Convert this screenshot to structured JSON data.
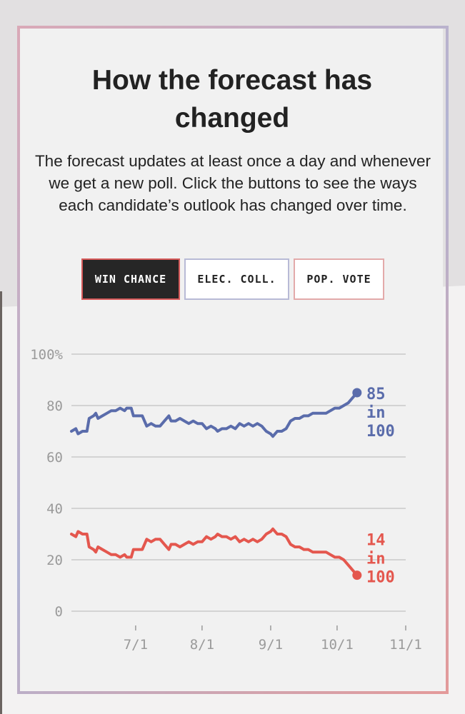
{
  "header": {
    "title": "How the forecast has changed",
    "description": "The forecast updates at least once a day and whenever we get a new poll. Click the buttons to see the ways each candidate’s outlook has changed over time."
  },
  "tabs": [
    {
      "label": "WIN CHANCE",
      "active": true
    },
    {
      "label": "ELEC. COLL.",
      "active": false
    },
    {
      "label": "POP. VOTE",
      "active": false
    }
  ],
  "chart_data": {
    "type": "line",
    "title": "",
    "xlabel": "",
    "ylabel": "",
    "ylim": [
      0,
      100
    ],
    "yticks": [
      "100%",
      "80",
      "60",
      "40",
      "20",
      "0"
    ],
    "ytick_values": [
      100,
      80,
      60,
      40,
      20,
      0
    ],
    "xticks": [
      "7/1",
      "8/1",
      "9/1",
      "10/1",
      "11/1"
    ],
    "xtick_days": [
      29,
      59,
      90,
      120,
      151
    ],
    "xlim_days": [
      0,
      151
    ],
    "x_unit_note": "days after June 2",
    "grid": true,
    "series": [
      {
        "color": "#5a6cab",
        "end_label": [
          "85",
          "in",
          "100"
        ],
        "points": [
          [
            0,
            70
          ],
          [
            2,
            71
          ],
          [
            3,
            69
          ],
          [
            5,
            70
          ],
          [
            7,
            70
          ],
          [
            8,
            75
          ],
          [
            10,
            76
          ],
          [
            11,
            77
          ],
          [
            12,
            75
          ],
          [
            14,
            76
          ],
          [
            16,
            77
          ],
          [
            18,
            78
          ],
          [
            20,
            78
          ],
          [
            22,
            79
          ],
          [
            24,
            78
          ],
          [
            25,
            79
          ],
          [
            27,
            79
          ],
          [
            28,
            76
          ],
          [
            30,
            76
          ],
          [
            32,
            76
          ],
          [
            34,
            72
          ],
          [
            36,
            73
          ],
          [
            38,
            72
          ],
          [
            40,
            72
          ],
          [
            42,
            74
          ],
          [
            44,
            76
          ],
          [
            45,
            74
          ],
          [
            47,
            74
          ],
          [
            49,
            75
          ],
          [
            51,
            74
          ],
          [
            53,
            73
          ],
          [
            55,
            74
          ],
          [
            57,
            73
          ],
          [
            59,
            73
          ],
          [
            61,
            71
          ],
          [
            63,
            72
          ],
          [
            65,
            71
          ],
          [
            66,
            70
          ],
          [
            68,
            71
          ],
          [
            70,
            71
          ],
          [
            72,
            72
          ],
          [
            74,
            71
          ],
          [
            76,
            73
          ],
          [
            78,
            72
          ],
          [
            80,
            73
          ],
          [
            82,
            72
          ],
          [
            84,
            73
          ],
          [
            86,
            72
          ],
          [
            88,
            70
          ],
          [
            90,
            69
          ],
          [
            91,
            68
          ],
          [
            93,
            70
          ],
          [
            95,
            70
          ],
          [
            97,
            71
          ],
          [
            99,
            74
          ],
          [
            101,
            75
          ],
          [
            103,
            75
          ],
          [
            105,
            76
          ],
          [
            107,
            76
          ],
          [
            109,
            77
          ],
          [
            111,
            77
          ],
          [
            113,
            77
          ],
          [
            115,
            77
          ],
          [
            117,
            78
          ],
          [
            119,
            79
          ],
          [
            121,
            79
          ],
          [
            123,
            80
          ],
          [
            125,
            81
          ],
          [
            127,
            83
          ],
          [
            129,
            85
          ]
        ]
      },
      {
        "color": "#e4574e",
        "end_label": [
          "14",
          "in",
          "100"
        ],
        "points": [
          [
            0,
            30
          ],
          [
            2,
            29
          ],
          [
            3,
            31
          ],
          [
            5,
            30
          ],
          [
            7,
            30
          ],
          [
            8,
            25
          ],
          [
            10,
            24
          ],
          [
            11,
            23
          ],
          [
            12,
            25
          ],
          [
            14,
            24
          ],
          [
            16,
            23
          ],
          [
            18,
            22
          ],
          [
            20,
            22
          ],
          [
            22,
            21
          ],
          [
            24,
            22
          ],
          [
            25,
            21
          ],
          [
            27,
            21
          ],
          [
            28,
            24
          ],
          [
            30,
            24
          ],
          [
            32,
            24
          ],
          [
            34,
            28
          ],
          [
            36,
            27
          ],
          [
            38,
            28
          ],
          [
            40,
            28
          ],
          [
            42,
            26
          ],
          [
            44,
            24
          ],
          [
            45,
            26
          ],
          [
            47,
            26
          ],
          [
            49,
            25
          ],
          [
            51,
            26
          ],
          [
            53,
            27
          ],
          [
            55,
            26
          ],
          [
            57,
            27
          ],
          [
            59,
            27
          ],
          [
            61,
            29
          ],
          [
            63,
            28
          ],
          [
            65,
            29
          ],
          [
            66,
            30
          ],
          [
            68,
            29
          ],
          [
            70,
            29
          ],
          [
            72,
            28
          ],
          [
            74,
            29
          ],
          [
            76,
            27
          ],
          [
            78,
            28
          ],
          [
            80,
            27
          ],
          [
            82,
            28
          ],
          [
            84,
            27
          ],
          [
            86,
            28
          ],
          [
            88,
            30
          ],
          [
            90,
            31
          ],
          [
            91,
            32
          ],
          [
            93,
            30
          ],
          [
            95,
            30
          ],
          [
            97,
            29
          ],
          [
            99,
            26
          ],
          [
            101,
            25
          ],
          [
            103,
            25
          ],
          [
            105,
            24
          ],
          [
            107,
            24
          ],
          [
            109,
            23
          ],
          [
            111,
            23
          ],
          [
            113,
            23
          ],
          [
            115,
            23
          ],
          [
            117,
            22
          ],
          [
            119,
            21
          ],
          [
            121,
            21
          ],
          [
            123,
            20
          ],
          [
            125,
            18
          ],
          [
            127,
            16
          ],
          [
            129,
            14
          ]
        ]
      }
    ]
  }
}
